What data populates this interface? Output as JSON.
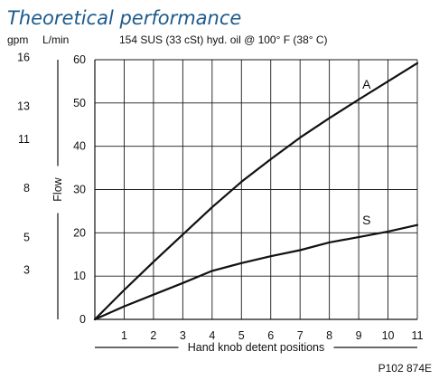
{
  "chart_data": {
    "type": "line",
    "title": "Theoretical performance",
    "subtitle": "154 SUS (33 cSt) hyd. oil @ 100° F (38° C)",
    "xlabel": "Hand knob detent positions",
    "ylabel": "Flow",
    "y_unit_left": "gpm",
    "y_unit_right": "L/min",
    "xlim": [
      0,
      11
    ],
    "ylim": [
      0,
      60
    ],
    "x_ticks": [
      "1",
      "2",
      "3",
      "4",
      "5",
      "6",
      "7",
      "8",
      "9",
      "10",
      "11"
    ],
    "y_ticks_lmin": [
      "0",
      "10",
      "20",
      "30",
      "40",
      "50",
      "60"
    ],
    "y_ticks_gpm": [
      "3",
      "5",
      "8",
      "11",
      "13",
      "16"
    ],
    "grid": true,
    "series": [
      {
        "name": "A",
        "x": [
          0,
          1,
          2,
          3,
          4,
          5,
          6,
          7,
          8,
          9,
          10,
          11
        ],
        "values": [
          0,
          6.8,
          13.3,
          19.6,
          25.9,
          31.8,
          37.0,
          42.0,
          46.5,
          50.8,
          55.0,
          59.2
        ]
      },
      {
        "name": "S",
        "x": [
          0,
          1,
          2,
          3,
          4,
          5,
          6,
          7,
          8,
          9,
          10,
          11
        ],
        "values": [
          0,
          3.0,
          5.7,
          8.4,
          11.2,
          13.0,
          14.6,
          16.0,
          17.8,
          19.0,
          20.3,
          21.8
        ]
      }
    ],
    "figure_code": "P102 874E"
  }
}
